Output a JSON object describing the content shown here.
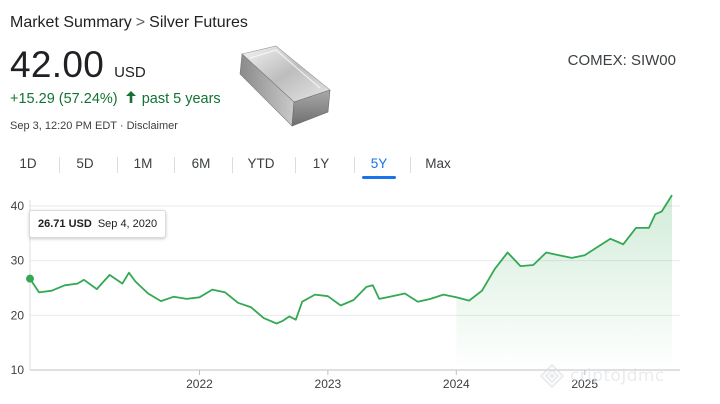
{
  "breadcrumb": {
    "root": "Market Summary",
    "separator": ">",
    "current": "Silver Futures"
  },
  "quote": {
    "price": "42.00",
    "currency": "USD",
    "change": "+15.29 (57.24%)",
    "change_icon": "arrow-up-icon",
    "period": "past 5 years",
    "timestamp": "Sep 3, 12:20 PM EDT",
    "meta_separator": "·",
    "disclaimer": "Disclaimer",
    "ticker": "COMEX: SIW00"
  },
  "image": {
    "icon": "silver-bar-icon"
  },
  "tabs": [
    {
      "label": "1D"
    },
    {
      "label": "5D"
    },
    {
      "label": "1M"
    },
    {
      "label": "6M"
    },
    {
      "label": "YTD"
    },
    {
      "label": "1Y"
    },
    {
      "label": "5Y",
      "active": true
    },
    {
      "label": "Max"
    }
  ],
  "tooltip": {
    "value": "26.71 USD",
    "date": "Sep 4, 2020"
  },
  "watermark": {
    "text": "criptoJdmc"
  },
  "colors": {
    "line": "#34a853",
    "accent": "#1a73e8",
    "positive": "#137333"
  },
  "chart_data": {
    "type": "area",
    "title": "",
    "xlabel": "",
    "ylabel": "",
    "ylim": [
      10,
      40
    ],
    "yticks": [
      10,
      20,
      30,
      40
    ],
    "xlim": [
      2020.68,
      2025.68
    ],
    "xticks": [
      2022,
      2023,
      2024,
      2025
    ],
    "xtick_labels": [
      "2022",
      "2023",
      "2024",
      "2025"
    ],
    "grid": true,
    "series": [
      {
        "x": [
          2020.68,
          2020.75,
          2020.85,
          2020.95,
          2021.05,
          2021.1,
          2021.2,
          2021.3,
          2021.4,
          2021.45,
          2021.5,
          2021.6,
          2021.7,
          2021.8,
          2021.9,
          2022.0,
          2022.1,
          2022.2,
          2022.3,
          2022.4,
          2022.5,
          2022.6,
          2022.65,
          2022.7,
          2022.75,
          2022.8,
          2022.9,
          2023.0,
          2023.1,
          2023.2,
          2023.3,
          2023.35,
          2023.4,
          2023.5,
          2023.6,
          2023.7,
          2023.8,
          2023.9,
          2024.0,
          2024.1,
          2024.2,
          2024.25,
          2024.3,
          2024.4,
          2024.5,
          2024.6,
          2024.7,
          2024.8,
          2024.9,
          2025.0,
          2025.1,
          2025.2,
          2025.25,
          2025.3,
          2025.4,
          2025.5,
          2025.55,
          2025.6,
          2025.68
        ],
        "values": [
          26.71,
          24.2,
          24.5,
          25.5,
          25.8,
          26.5,
          24.8,
          27.4,
          25.8,
          27.8,
          26.2,
          24.0,
          22.6,
          23.4,
          23.0,
          23.3,
          24.7,
          24.2,
          22.3,
          21.5,
          19.5,
          18.5,
          19.0,
          19.8,
          19.2,
          22.5,
          23.8,
          23.5,
          21.8,
          22.8,
          25.2,
          25.5,
          23.0,
          23.5,
          24.0,
          22.5,
          23.0,
          23.8,
          23.3,
          22.7,
          24.5,
          26.5,
          28.5,
          31.5,
          29.0,
          29.2,
          31.5,
          31.0,
          30.5,
          31.0,
          32.5,
          34.0,
          33.5,
          33.0,
          36.0,
          36.0,
          38.5,
          39.0,
          42.0
        ]
      }
    ]
  }
}
